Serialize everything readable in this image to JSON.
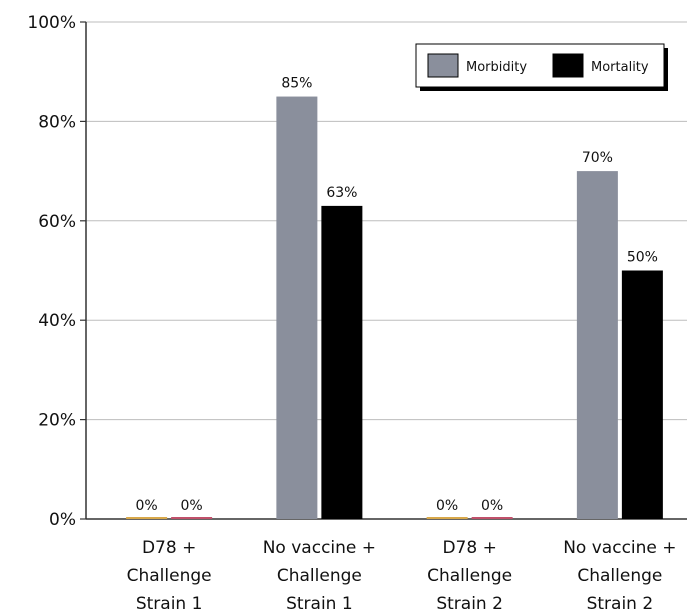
{
  "chart_data": {
    "type": "bar",
    "title": "",
    "xlabel": "",
    "ylabel": "",
    "ylim": [
      0,
      100
    ],
    "y_ticks": [
      0,
      20,
      40,
      60,
      80,
      100
    ],
    "y_tick_labels": [
      "0%",
      "20%",
      "40%",
      "60%",
      "80%",
      "100%"
    ],
    "grid": true,
    "legend_position": "top-right",
    "categories": [
      [
        "D78 +",
        "Challenge",
        "Strain 1"
      ],
      [
        "No vaccine +",
        "Challenge",
        "Strain 1"
      ],
      [
        "D78 +",
        "Challenge",
        "Strain 2"
      ],
      [
        "No vaccine +",
        "Challenge",
        "Strain 2"
      ]
    ],
    "series": [
      {
        "name": "Morbidity",
        "color": "#8a8f9c",
        "values": [
          0,
          85,
          0,
          70
        ],
        "labels": [
          "0%",
          "85%",
          "0%",
          "70%"
        ]
      },
      {
        "name": "Mortality",
        "color": "#000000",
        "values": [
          0,
          63,
          0,
          50
        ],
        "labels": [
          "0%",
          "63%",
          "0%",
          "50%"
        ]
      }
    ],
    "zero_bar_colors": [
      "#d8a84a",
      "#c0506a"
    ]
  }
}
